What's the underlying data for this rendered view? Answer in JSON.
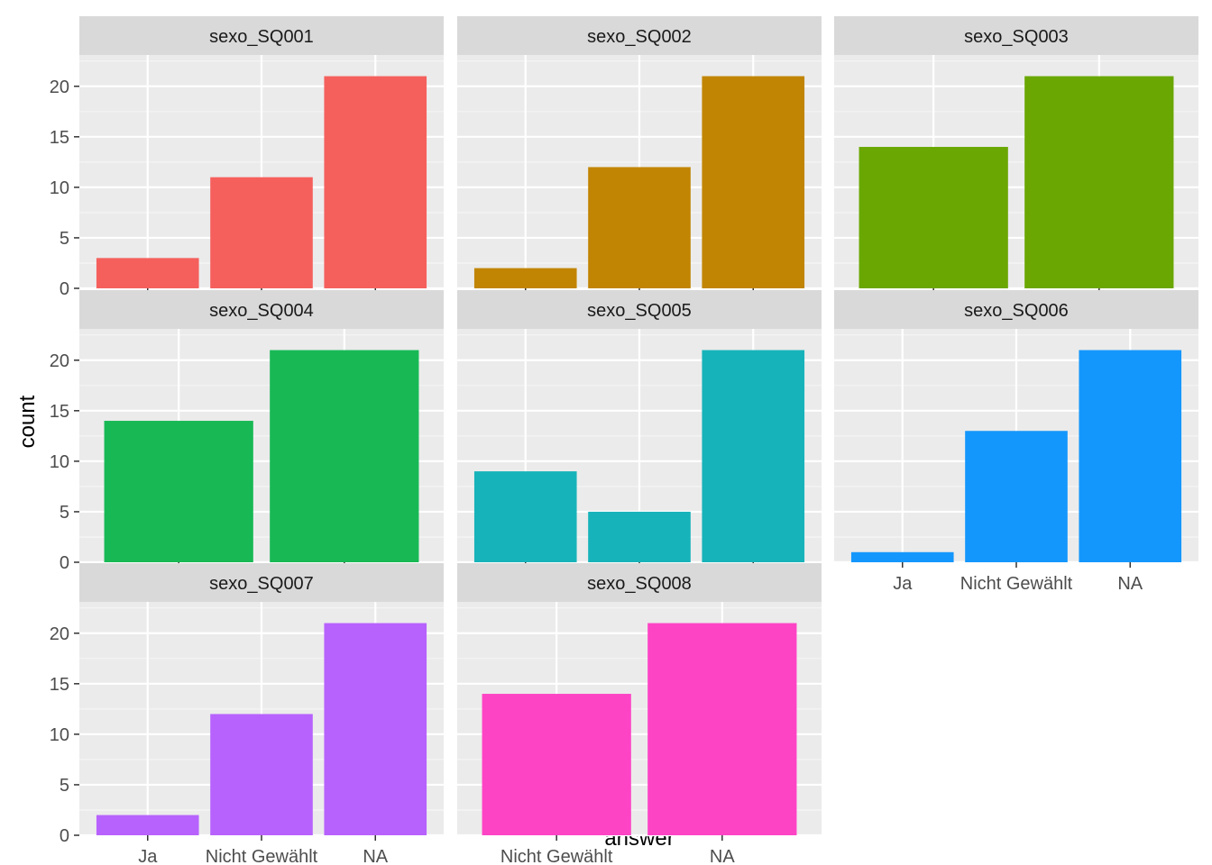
{
  "chart_data": {
    "type": "bar",
    "xlabel": "answer",
    "ylabel": "count",
    "ylim": [
      0,
      23.1
    ],
    "yticks": [
      0,
      5,
      10,
      15,
      20
    ],
    "grid": true,
    "legend": "none",
    "panels": [
      {
        "title": "sexo_SQ001",
        "color": "#F8766D",
        "categories": [
          "Ja",
          "Nicht Gewählt",
          "NA"
        ],
        "values": [
          3,
          11,
          21
        ]
      },
      {
        "title": "sexo_SQ002",
        "color": "#C49A00",
        "categories": [
          "Ja",
          "Nicht Gewählt",
          "NA"
        ],
        "values": [
          2,
          12,
          21
        ]
      },
      {
        "title": "sexo_SQ003",
        "color": "#53B400",
        "categories": [
          "Nicht Gewählt",
          "NA"
        ],
        "values": [
          14,
          21
        ]
      },
      {
        "title": "sexo_SQ004",
        "color": "#00C094",
        "categories": [
          "Nicht Gewählt",
          "NA"
        ],
        "values": [
          14,
          21
        ]
      },
      {
        "title": "sexo_SQ005",
        "color": "#00B6EB",
        "categories": [
          "Ja",
          "Nicht Gewählt",
          "NA"
        ],
        "values": [
          9,
          5,
          21
        ]
      },
      {
        "title": "sexo_SQ006",
        "color": "#06A4FF",
        "categories": [
          "Ja",
          "Nicht Gewählt",
          "NA"
        ],
        "values": [
          1,
          13,
          21
        ]
      },
      {
        "title": "sexo_SQ007",
        "color": "#A58AFF",
        "categories": [
          "Ja",
          "Nicht Gewählt",
          "NA"
        ],
        "values": [
          2,
          12,
          21
        ]
      },
      {
        "title": "sexo_SQ008",
        "color": "#FB61D7",
        "categories": [
          "Nicht Gewählt",
          "NA"
        ],
        "values": [
          14,
          21
        ]
      }
    ],
    "colors": {
      "SQ001": "#F5605D",
      "SQ002": "#C18503",
      "SQ003": "#6AA703",
      "SQ004": "#18B955",
      "SQ005": "#17B3BA",
      "SQ006": "#1497FC",
      "SQ007": "#B762FD",
      "SQ008": "#FD44C5"
    },
    "panel_background": "#EBEBEB",
    "strip_background": "#D9D9D9"
  }
}
